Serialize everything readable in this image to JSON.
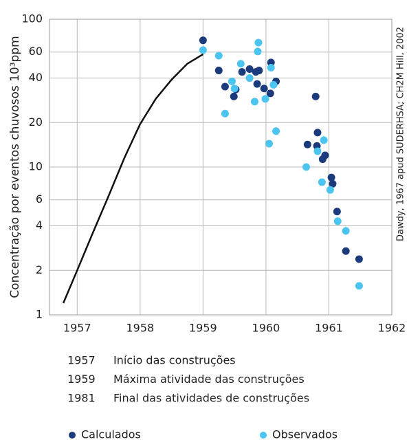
{
  "chart_data": {
    "type": "scatter",
    "ylabel": "Concentração por eventos chuvosos 10³ppm",
    "source": "Dawdy, 1967 apud SUDERHSA; CH2M Hill, 2002",
    "xlim": [
      1956.56,
      1962
    ],
    "xticks": [
      1957,
      1958,
      1959,
      1960,
      1961,
      1962
    ],
    "ylim": [
      1,
      100
    ],
    "yticks": [
      1,
      2,
      4,
      6,
      10,
      20,
      40,
      60,
      100
    ],
    "yscale": "log",
    "grid": true,
    "curve": {
      "color": "#111111",
      "x": [
        1956.78,
        1957,
        1957.25,
        1957.5,
        1957.75,
        1958,
        1958.25,
        1958.5,
        1958.75,
        1959
      ],
      "values": [
        1.2,
        2.0,
        3.6,
        6.4,
        11.5,
        19.5,
        29,
        39,
        50,
        58
      ]
    },
    "series": [
      {
        "name": "Calculados",
        "color": "#1b3b7d",
        "x": [
          1959.0,
          1959.25,
          1959.35,
          1959.49,
          1959.52,
          1959.62,
          1959.74,
          1959.84,
          1959.89,
          1959.86,
          1959.97,
          1960.07,
          1960.08,
          1960.16,
          1960.79,
          1960.66,
          1960.81,
          1960.82,
          1960.9,
          1960.94,
          1961.04,
          1961.06,
          1961.13,
          1961.27,
          1961.48
        ],
        "values": [
          72,
          45,
          35,
          30,
          33.5,
          44,
          46,
          44,
          45,
          36.5,
          34,
          31.5,
          51,
          38,
          30,
          14.2,
          13.9,
          17.1,
          11.3,
          12,
          8.5,
          7.7,
          5.0,
          2.7,
          2.38
        ]
      },
      {
        "name": "Observados",
        "color": "#4cc4f0",
        "x": [
          1959.0,
          1959.25,
          1959.46,
          1959.5,
          1959.35,
          1959.6,
          1959.74,
          1959.82,
          1959.88,
          1959.87,
          1959.99,
          1960.08,
          1960.12,
          1960.16,
          1960.05,
          1960.64,
          1960.82,
          1960.92,
          1960.89,
          1961.02,
          1961.14,
          1961.27,
          1961.48
        ],
        "values": [
          61.8,
          56.7,
          38,
          34,
          23,
          50,
          40,
          27.7,
          69.5,
          60.5,
          28.9,
          47,
          36,
          17.5,
          14.4,
          10,
          12.8,
          15.2,
          7.9,
          7.0,
          4.3,
          3.7,
          1.57
        ]
      }
    ],
    "notes": [
      {
        "year": "1957",
        "text": "Início das construções"
      },
      {
        "year": "1959",
        "text": "Máxima atividade das construções"
      },
      {
        "year": "1981",
        "text": "Final das atividades de construções"
      }
    ],
    "legend": "bottom"
  }
}
